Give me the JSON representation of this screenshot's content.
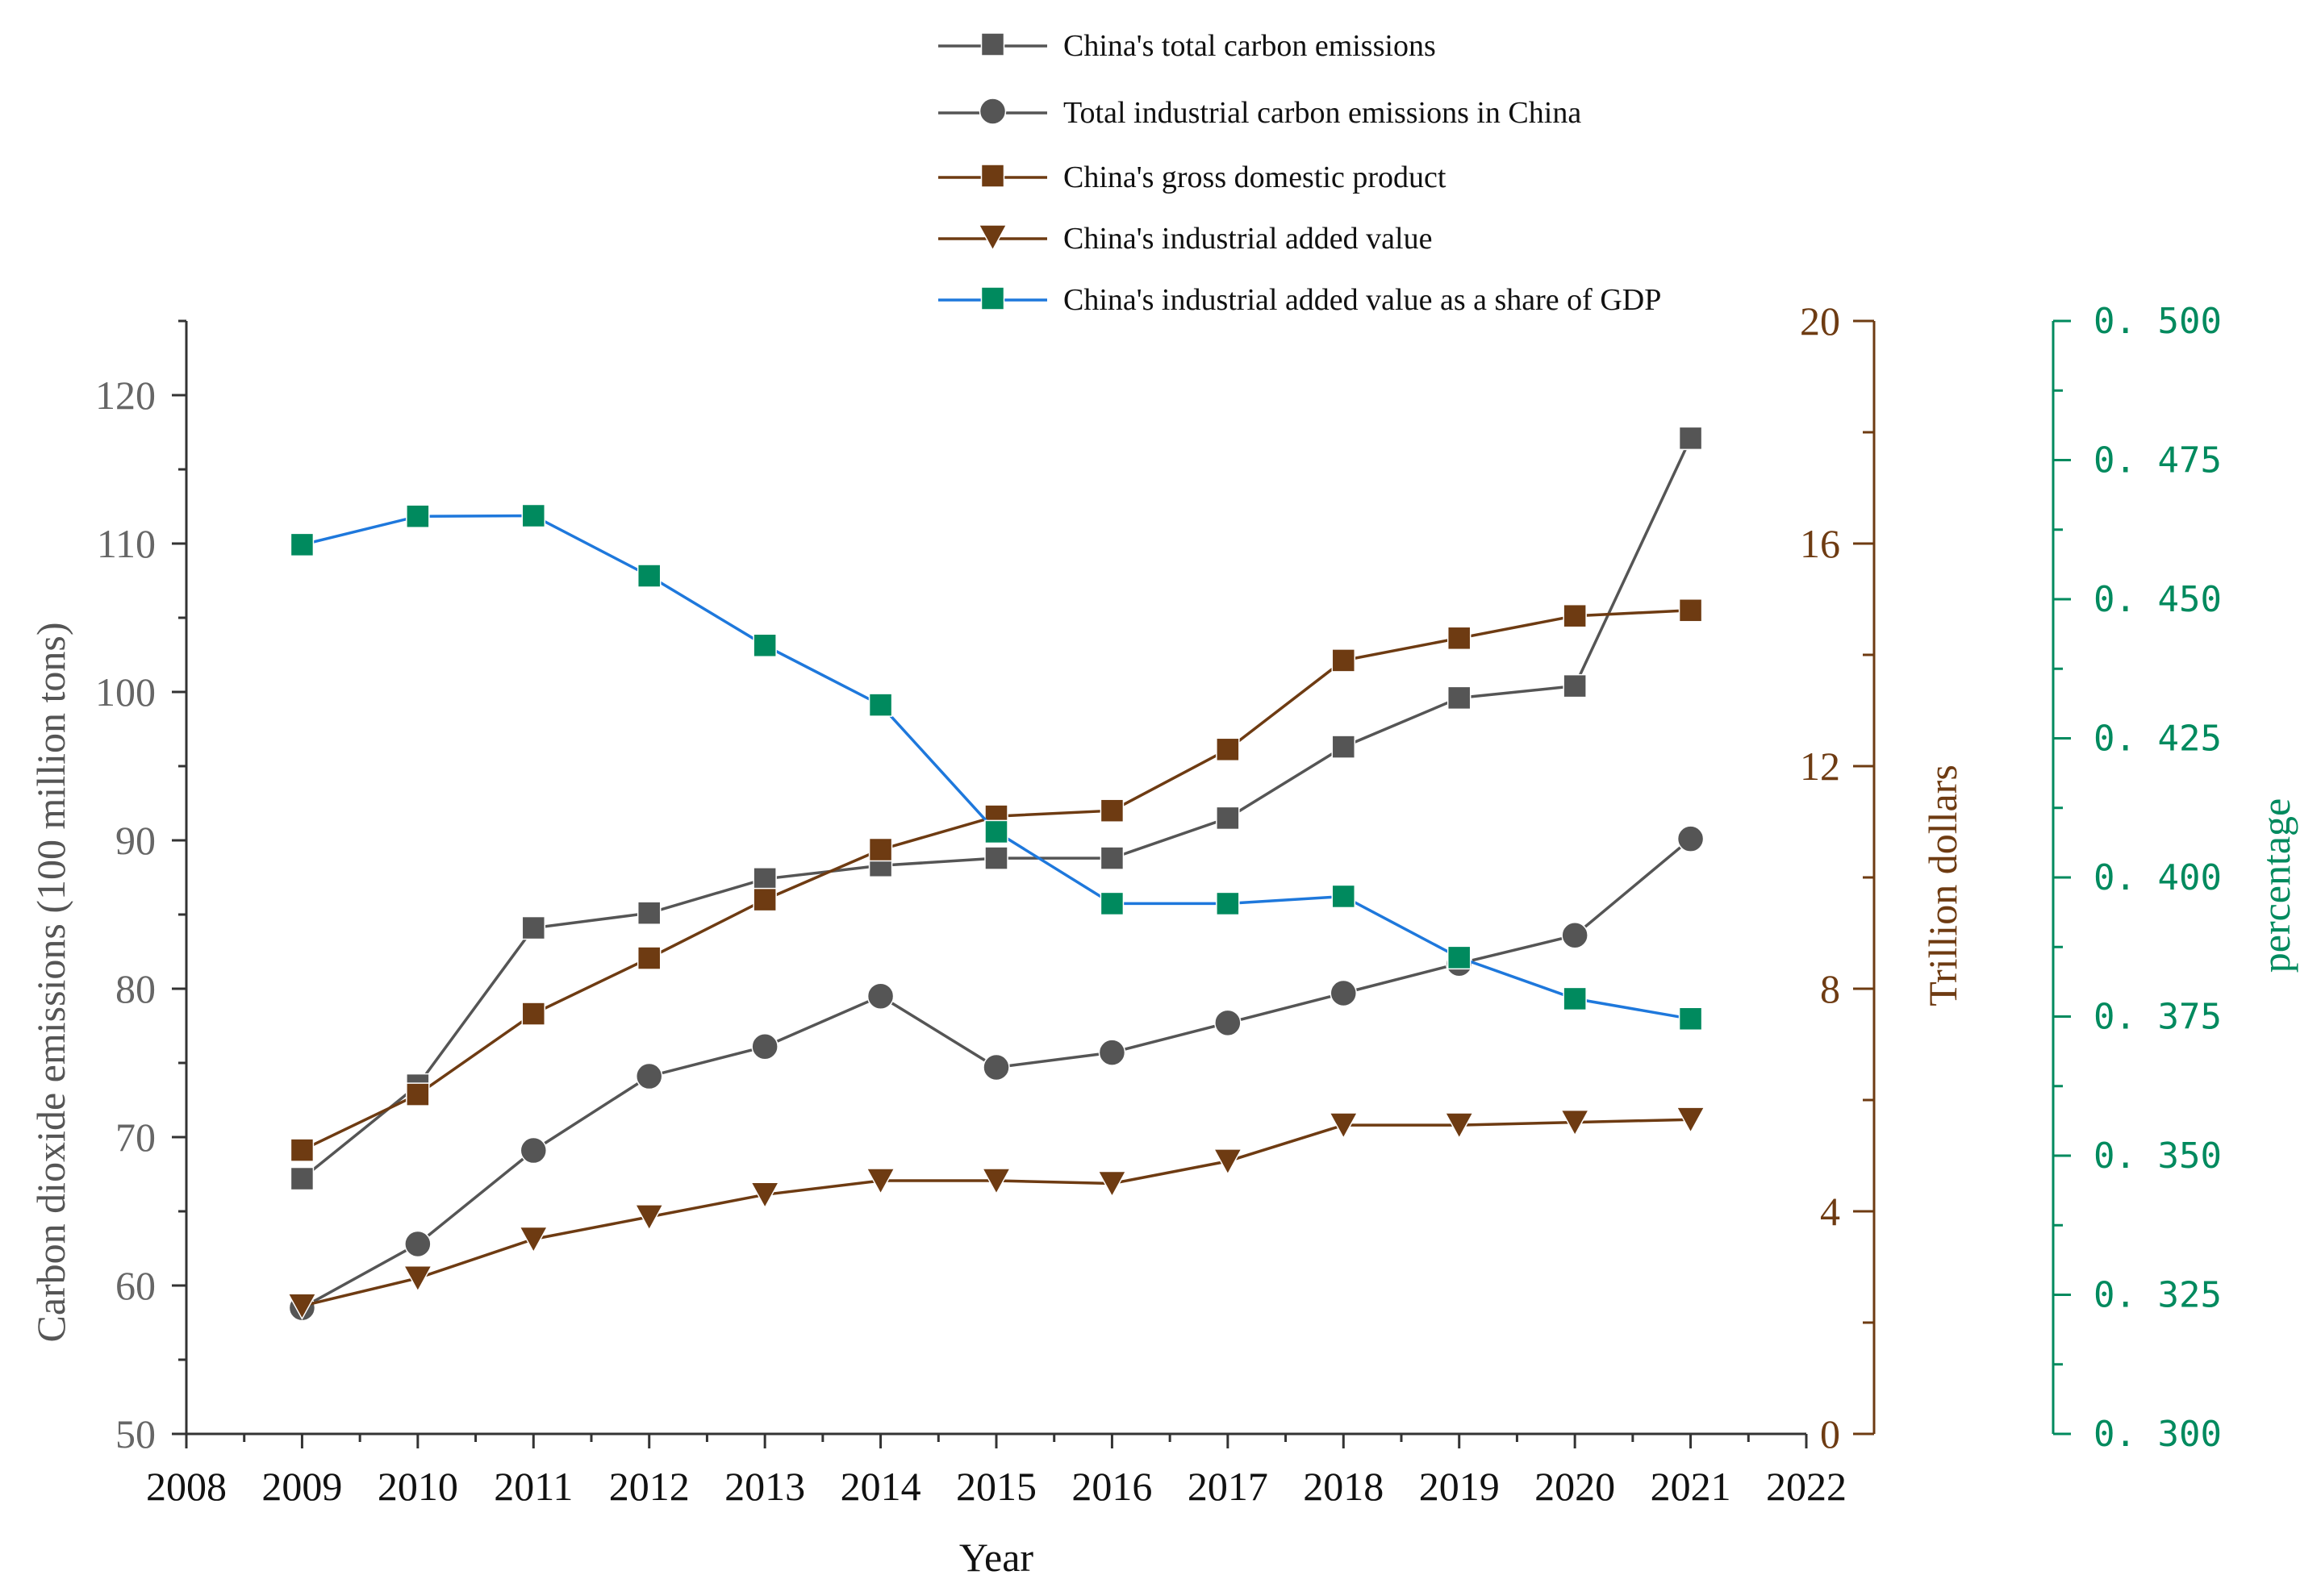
{
  "chart_data": {
    "type": "line",
    "xlabel": "Year",
    "x_ticks": [
      "2008",
      "2009",
      "2010",
      "2011",
      "2012",
      "2013",
      "2014",
      "2015",
      "2016",
      "2017",
      "2018",
      "2019",
      "2020",
      "2021",
      "2022"
    ],
    "x": [
      2009,
      2010,
      2011,
      2012,
      2013,
      2014,
      2015,
      2016,
      2017,
      2018,
      2019,
      2020,
      2021
    ],
    "xlim": [
      2008,
      2022
    ],
    "axes": {
      "left": {
        "label": "Carbon dioxide emissions (100 million tons)",
        "ylim": [
          50,
          125
        ],
        "ticks": [
          "50",
          "60",
          "70",
          "80",
          "90",
          "100",
          "110",
          "120"
        ],
        "color": "#555555"
      },
      "right1": {
        "label": "Trillion dollars",
        "ylim": [
          0,
          20
        ],
        "ticks": [
          "0",
          "4",
          "8",
          "12",
          "16",
          "20"
        ],
        "color": "#6e3b12"
      },
      "right2": {
        "label": "percentage",
        "ylim": [
          0.3,
          0.5
        ],
        "ticks": [
          "0. 300",
          "0. 325",
          "0. 350",
          "0. 375",
          "0. 400",
          "0. 425",
          "0. 450",
          "0. 475",
          "0. 500"
        ],
        "color": "#008a5e"
      }
    },
    "series": [
      {
        "name": "China's total carbon emissions",
        "axis": "left",
        "marker": "square",
        "line_color": "#555555",
        "marker_color": "#555555",
        "values": [
          67.2,
          73.5,
          84.1,
          85.1,
          87.4,
          88.3,
          88.8,
          88.8,
          91.5,
          96.3,
          99.6,
          100.4,
          117.1
        ]
      },
      {
        "name": "Total industrial carbon emissions in China",
        "axis": "left",
        "marker": "circle",
        "line_color": "#555555",
        "marker_color": "#555555",
        "values": [
          58.5,
          62.8,
          69.1,
          74.1,
          76.1,
          79.5,
          74.7,
          75.7,
          77.7,
          79.7,
          81.7,
          83.6,
          90.1
        ]
      },
      {
        "name": "China's gross domestic product",
        "axis": "right1",
        "marker": "square",
        "line_color": "#6e3b12",
        "marker_color": "#6e3b12",
        "values": [
          5.1,
          6.1,
          7.55,
          8.55,
          9.6,
          10.5,
          11.1,
          11.2,
          12.3,
          13.9,
          14.3,
          14.7,
          14.8
        ]
      },
      {
        "name": "China's industrial added value",
        "axis": "right1",
        "marker": "triangle-down",
        "line_color": "#6e3b12",
        "marker_color": "#6e3b12",
        "values": [
          2.3,
          2.8,
          3.5,
          3.9,
          4.3,
          4.55,
          4.55,
          4.5,
          4.9,
          5.55,
          5.55,
          5.6,
          5.65
        ]
      },
      {
        "name": "China's industrial added value as a share of GDP",
        "axis": "right2",
        "marker": "square",
        "line_color": "#1e78dc",
        "marker_color": "#008a5e",
        "values": [
          0.4598,
          0.4649,
          0.465,
          0.4542,
          0.4417,
          0.431,
          0.4082,
          0.3953,
          0.3953,
          0.3966,
          0.3856,
          0.3782,
          0.3746
        ]
      }
    ]
  }
}
